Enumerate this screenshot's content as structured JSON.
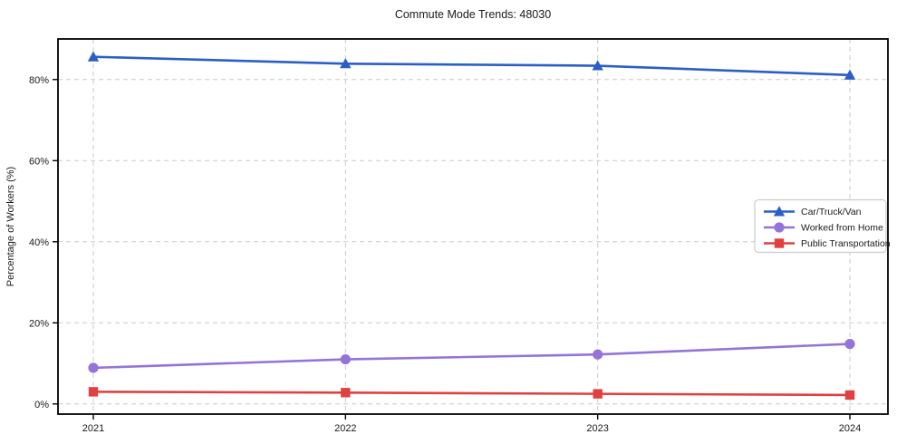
{
  "chart_data": {
    "type": "line",
    "title": "Commute Mode Trends: 48030",
    "xlabel": "",
    "ylabel": "Percentage of Workers (%)",
    "categories": [
      "2021",
      "2022",
      "2023",
      "2024"
    ],
    "series": [
      {
        "name": "Car/Truck/Van",
        "marker": "triangle",
        "color": "#2a5fc6",
        "values": [
          85.6,
          83.9,
          83.4,
          81.1
        ]
      },
      {
        "name": "Worked from Home",
        "marker": "circle",
        "color": "#9474d8",
        "values": [
          8.9,
          11.0,
          12.2,
          14.8
        ]
      },
      {
        "name": "Public Transportation",
        "marker": "square",
        "color": "#e04040",
        "values": [
          3.0,
          2.8,
          2.5,
          2.2
        ]
      }
    ],
    "y_tick_values": [
      0,
      20,
      40,
      60,
      80
    ],
    "y_tick_labels": [
      "0%",
      "20%",
      "40%",
      "60%",
      "80%"
    ],
    "ylim": [
      -2.5,
      90
    ],
    "grid": true,
    "grid_style": "dashed",
    "legend_position": "center-right"
  },
  "styles": {
    "background": "#ffffff",
    "text_color": "#1a1a1a",
    "axis_color": "#000000",
    "grid_color": "#c9c9c9",
    "legend_border": "#cccccc",
    "legend_fill": "#ffffff"
  }
}
